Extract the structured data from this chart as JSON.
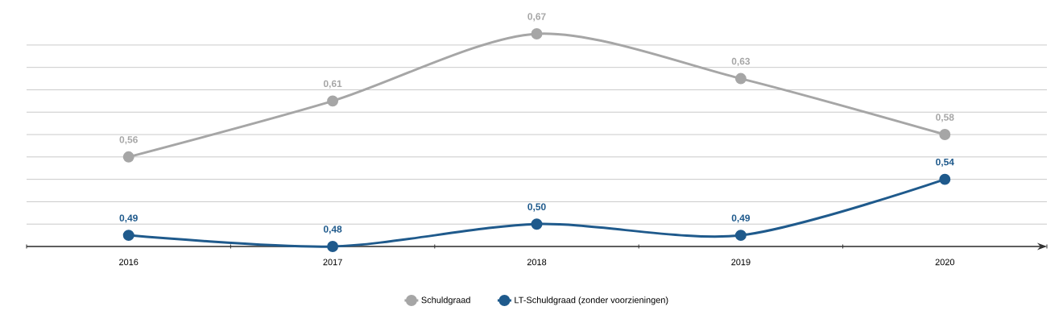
{
  "chart_data": {
    "type": "line",
    "categories": [
      "2016",
      "2017",
      "2018",
      "2019",
      "2020"
    ],
    "series": [
      {
        "name": "Schuldgraad",
        "color": "#a6a6a6",
        "values": [
          0.56,
          0.61,
          0.67,
          0.63,
          0.58
        ],
        "value_labels": [
          "0,56",
          "0,61",
          "0,67",
          "0,63",
          "0,58"
        ]
      },
      {
        "name": "LT-Schuldgraad (zonder voorzieningen)",
        "color": "#1f5a8c",
        "values": [
          0.49,
          0.48,
          0.5,
          0.49,
          0.54
        ],
        "value_labels": [
          "0,49",
          "0,48",
          "0,50",
          "0,49",
          "0,54"
        ]
      }
    ],
    "tick_labels": "x",
    "grid": "y",
    "legend": "bottom",
    "marker": "circle",
    "line_style": "solid"
  }
}
